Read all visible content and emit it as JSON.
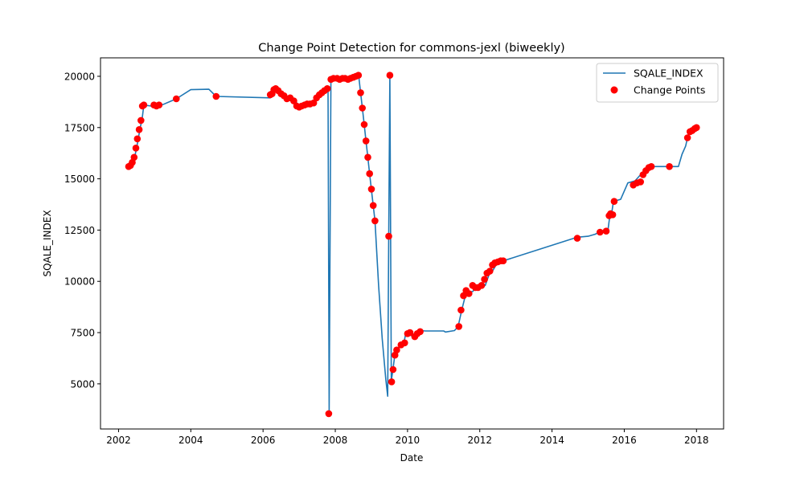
{
  "chart_data": {
    "type": "line",
    "title": "Change Point Detection for commons-jexl (biweekly)",
    "xlabel": "Date",
    "ylabel": "SQALE_INDEX",
    "xlim": [
      2001.5,
      2018.75
    ],
    "ylim": [
      2800,
      20900
    ],
    "x_ticks": [
      2002,
      2004,
      2006,
      2008,
      2010,
      2012,
      2014,
      2016,
      2018
    ],
    "x_tick_labels": [
      "2002",
      "2004",
      "2006",
      "2008",
      "2010",
      "2012",
      "2014",
      "2016",
      "2018"
    ],
    "y_ticks": [
      5000,
      7500,
      10000,
      12500,
      15000,
      17500,
      20000
    ],
    "y_tick_labels": [
      "5000",
      "7500",
      "10000",
      "12500",
      "15000",
      "17500",
      "20000"
    ],
    "grid": false,
    "legend": {
      "placement": "top-right",
      "entries": [
        "SQALE_INDEX",
        "Change Points"
      ]
    },
    "colors": {
      "line": "#1f77b4",
      "points": "#ff0000"
    },
    "series": [
      {
        "name": "SQALE_INDEX",
        "kind": "line",
        "x": [
          2002.3,
          2002.35,
          2002.4,
          2002.45,
          2002.5,
          2002.55,
          2002.6,
          2002.65,
          2002.7,
          2002.9,
          2003.0,
          2003.1,
          2003.2,
          2003.6,
          2004.0,
          2004.5,
          2004.7,
          2006.2,
          2006.25,
          2006.3,
          2006.35,
          2006.4,
          2006.5,
          2006.6,
          2006.7,
          2006.8,
          2006.9,
          2007.0,
          2007.1,
          2007.2,
          2007.3,
          2007.4,
          2007.5,
          2007.6,
          2007.7,
          2007.75,
          2007.8,
          2007.83,
          2007.88,
          2007.95,
          2008.0,
          2008.2,
          2008.4,
          2008.6,
          2008.65,
          2008.7,
          2008.75,
          2008.8,
          2008.85,
          2008.9,
          2008.95,
          2009.0,
          2009.05,
          2009.1,
          2009.2,
          2009.3,
          2009.4,
          2009.45,
          2009.48,
          2009.51,
          2009.55,
          2009.6,
          2009.65,
          2009.7,
          2009.8,
          2009.9,
          2009.95,
          2010.0,
          2010.1,
          2010.2,
          2010.25,
          2010.35,
          2010.5,
          2011.0,
          2011.05,
          2011.3,
          2011.4,
          2011.5,
          2011.6,
          2011.7,
          2011.8,
          2011.9,
          2012.0,
          2012.15,
          2012.25,
          2012.35,
          2012.45,
          2012.55,
          2012.65,
          2014.7,
          2015.0,
          2015.2,
          2015.35,
          2015.5,
          2015.55,
          2015.6,
          2015.65,
          2015.7,
          2015.9,
          2016.1,
          2016.3,
          2016.45,
          2016.6,
          2016.7,
          2016.8,
          2017.3,
          2017.5,
          2017.6,
          2017.7,
          2017.75,
          2017.8,
          2017.9,
          2018.0
        ],
        "y": [
          15600,
          15700,
          15900,
          16100,
          16500,
          17000,
          17500,
          17900,
          18600,
          18550,
          18580,
          18600,
          18600,
          18900,
          19350,
          19370,
          19020,
          18950,
          19150,
          19350,
          19400,
          19400,
          19200,
          19000,
          18900,
          18950,
          18800,
          18500,
          18550,
          18600,
          18650,
          18700,
          18900,
          19100,
          19250,
          19300,
          19400,
          3600,
          19850,
          19900,
          19900,
          19900,
          19950,
          20000,
          20000,
          19200,
          18450,
          17650,
          16850,
          16050,
          15250,
          14450,
          13700,
          12950,
          9800,
          7200,
          5200,
          4400,
          12250,
          20050,
          5150,
          5750,
          6450,
          6600,
          6850,
          7000,
          7450,
          7550,
          7350,
          7400,
          7550,
          7600,
          7580,
          7580,
          7530,
          7600,
          7800,
          8600,
          9300,
          9500,
          9500,
          9700,
          9750,
          9800,
          10300,
          10500,
          10800,
          10900,
          11000,
          12150,
          12200,
          12300,
          12450,
          12500,
          12500,
          13200,
          13300,
          13900,
          14000,
          14800,
          14900,
          15200,
          15500,
          15600,
          15600,
          15600,
          15600,
          16200,
          16600,
          17000,
          17300,
          17400,
          17500
        ]
      },
      {
        "name": "Change Points",
        "kind": "scatter",
        "x": [
          2002.28,
          2002.33,
          2002.38,
          2002.43,
          2002.48,
          2002.52,
          2002.57,
          2002.62,
          2002.66,
          2002.7,
          2002.98,
          2003.05,
          2003.12,
          2003.6,
          2004.7,
          2006.2,
          2006.25,
          2006.3,
          2006.35,
          2006.42,
          2006.5,
          2006.58,
          2006.66,
          2006.75,
          2006.85,
          2006.93,
          2007.0,
          2007.07,
          2007.15,
          2007.22,
          2007.3,
          2007.4,
          2007.48,
          2007.56,
          2007.63,
          2007.7,
          2007.78,
          2007.82,
          2007.88,
          2007.95,
          2008.05,
          2008.12,
          2008.2,
          2008.27,
          2008.35,
          2008.42,
          2008.5,
          2008.57,
          2008.64,
          2008.7,
          2008.75,
          2008.8,
          2008.85,
          2008.9,
          2008.95,
          2009.0,
          2009.05,
          2009.1,
          2009.48,
          2009.51,
          2009.56,
          2009.6,
          2009.65,
          2009.7,
          2009.82,
          2009.92,
          2010.0,
          2010.07,
          2010.2,
          2010.27,
          2010.35,
          2011.42,
          2011.48,
          2011.55,
          2011.62,
          2011.7,
          2011.8,
          2011.88,
          2011.95,
          2012.05,
          2012.13,
          2012.2,
          2012.28,
          2012.35,
          2012.42,
          2012.5,
          2012.58,
          2012.65,
          2014.7,
          2015.33,
          2015.5,
          2015.58,
          2015.62,
          2015.68,
          2015.72,
          2016.25,
          2016.35,
          2016.45,
          2016.52,
          2016.6,
          2016.68,
          2016.75,
          2017.25,
          2017.75,
          2017.82,
          2017.88,
          2017.95,
          2018.0
        ],
        "y": [
          15600,
          15650,
          15800,
          16050,
          16500,
          16950,
          17400,
          17850,
          18550,
          18600,
          18600,
          18550,
          18600,
          18900,
          19020,
          19100,
          19150,
          19350,
          19400,
          19300,
          19150,
          19050,
          18900,
          18950,
          18800,
          18550,
          18500,
          18550,
          18600,
          18650,
          18650,
          18700,
          18950,
          19100,
          19200,
          19300,
          19400,
          3550,
          19850,
          19900,
          19900,
          19850,
          19900,
          19900,
          19850,
          19900,
          19950,
          20000,
          20050,
          19200,
          18450,
          17650,
          16850,
          16050,
          15250,
          14500,
          13700,
          12950,
          12200,
          20050,
          5100,
          5700,
          6400,
          6650,
          6900,
          7000,
          7450,
          7500,
          7300,
          7450,
          7550,
          7800,
          8600,
          9300,
          9550,
          9400,
          9800,
          9700,
          9700,
          9800,
          10100,
          10400,
          10500,
          10800,
          10900,
          10950,
          11000,
          11000,
          12100,
          12400,
          12450,
          13200,
          13300,
          13250,
          13900,
          14700,
          14800,
          14850,
          15200,
          15400,
          15550,
          15600,
          15600,
          17000,
          17300,
          17350,
          17450,
          17500
        ]
      }
    ]
  }
}
